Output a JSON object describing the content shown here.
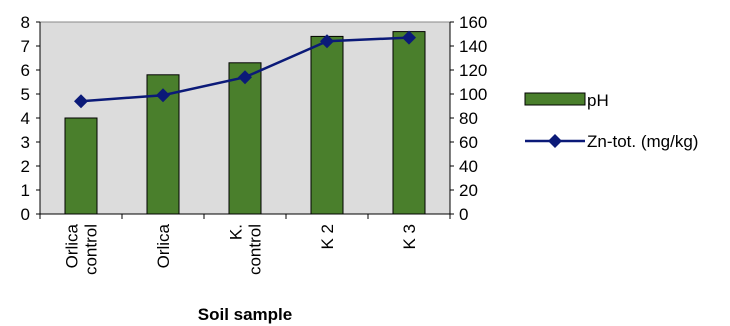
{
  "chart_data": {
    "type": "bar",
    "categories": [
      [
        "Orlica",
        "control"
      ],
      [
        "Orlica"
      ],
      [
        "K.",
        "control"
      ],
      [
        "K 2"
      ],
      [
        "K 3"
      ]
    ],
    "series": [
      {
        "name": "pH",
        "type": "bar",
        "axis": "left",
        "values": [
          4.0,
          5.8,
          6.3,
          7.4,
          7.6
        ],
        "color": "#4a7f2c"
      },
      {
        "name": "Zn-tot. (mg/kg)",
        "type": "line",
        "axis": "right",
        "values": [
          94,
          99,
          114,
          144,
          147
        ],
        "color": "#0b1a78"
      }
    ],
    "xlabel": "Soil sample",
    "ylim_left": [
      0,
      8
    ],
    "yticks_left": [
      "0",
      "1",
      "2",
      "3",
      "4",
      "5",
      "6",
      "7",
      "8"
    ],
    "ylim_right": [
      0,
      160
    ],
    "yticks_right": [
      "0",
      "20",
      "40",
      "60",
      "80",
      "100",
      "120",
      "140",
      "160"
    ],
    "plot_background": "#dcdcdc",
    "grid": false,
    "legend_position": "right"
  }
}
